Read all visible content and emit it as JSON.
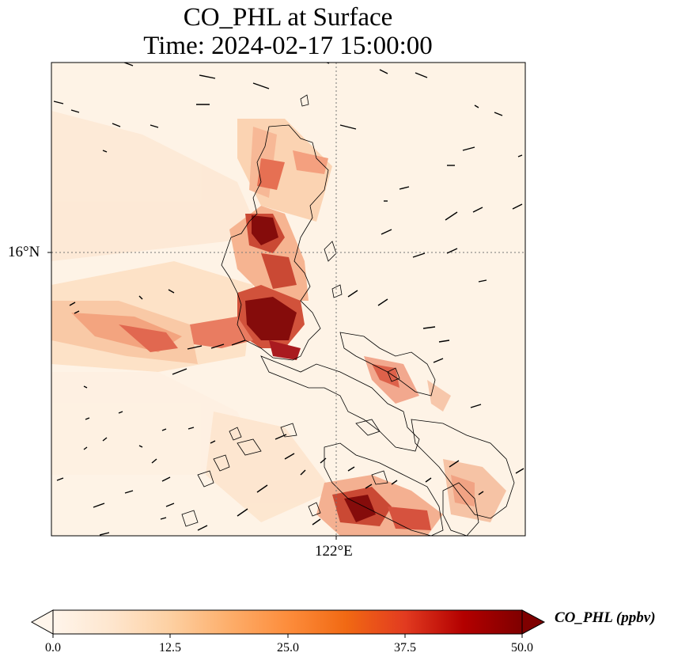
{
  "title": {
    "line1": "CO_PHL at Surface",
    "line2": "Time: 2024-02-17 15:00:00"
  },
  "axes": {
    "lat_tick_label": "16°N",
    "lon_tick_label": "122°E"
  },
  "colorbar": {
    "label": "CO_PHL (ppbv)",
    "ticks": [
      "0.0",
      "12.5",
      "25.0",
      "37.5",
      "50.0"
    ],
    "min": 0,
    "max": 50,
    "extend": "both",
    "colormap": [
      "#fff5eb",
      "#fee6ce",
      "#fdd0a2",
      "#fdae6b",
      "#fd8d3c",
      "#f16913",
      "#d94801",
      "#a50f15",
      "#7f0000"
    ]
  },
  "map": {
    "features": [
      "CO concentration field",
      "coastlines",
      "wind vectors",
      "graticule"
    ],
    "plume_colors": {
      "low": "#fee6ce",
      "medium": "#f6a478",
      "high": "#e34a33",
      "max": "#800000"
    }
  }
}
